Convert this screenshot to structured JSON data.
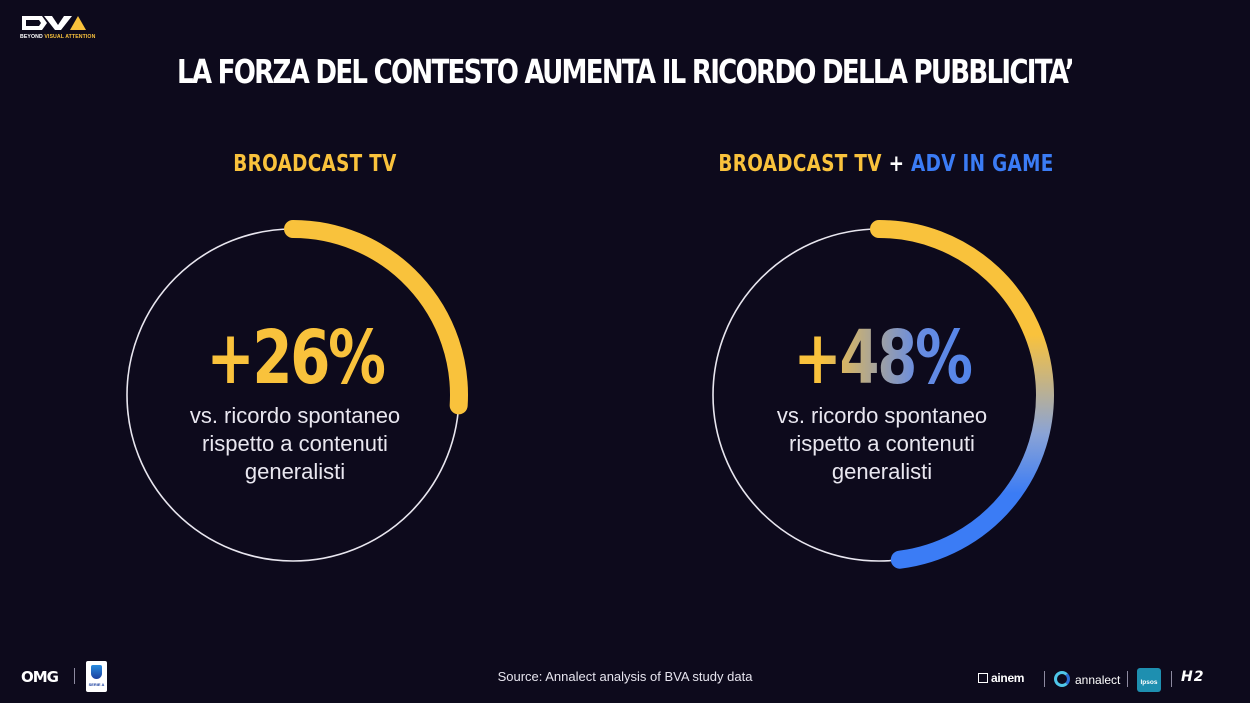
{
  "header": {
    "logo_name": "bva-logo",
    "logo_tagline_white": "BEYOND",
    "logo_tagline_yellow": "VISUAL ATTENTION",
    "title": "LA FORZA DEL CONTESTO AUMENTA IL RICORDO DELLA PUBBLICITA’"
  },
  "colors": {
    "background": "#0d0a1c",
    "yellow": "#f9c23c",
    "blue": "#3b7cf5",
    "ring_outline": "#e8e6ef"
  },
  "panels": [
    {
      "heading": "BROADCAST TV",
      "value": "+26%",
      "caption": [
        "vs. ricordo spontaneo",
        "rispetto a contenuti",
        "generalisti"
      ],
      "progress_fraction": 0.26
    },
    {
      "heading_part1": "BROADCAST TV",
      "heading_joiner": "+",
      "heading_part2": "ADV IN GAME",
      "value": "+48%",
      "caption": [
        "vs. ricordo spontaneo",
        "rispetto a contenuti",
        "generalisti"
      ],
      "progress_fraction": 0.48
    }
  ],
  "footer": {
    "source": "Source: Annalect analysis of BVA study data",
    "omg": "OMG",
    "seriea_label": "SERIE A",
    "ainem": "ainem",
    "annalect": "annalect",
    "ipsos": "Ipsos",
    "h2": "H2"
  }
}
